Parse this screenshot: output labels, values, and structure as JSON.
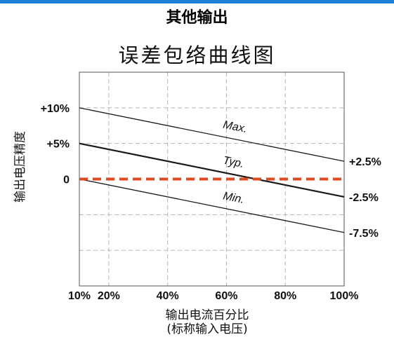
{
  "header": {
    "section_title": "其他输出",
    "accent_color": "#1e7fd6"
  },
  "chart_data": {
    "type": "line",
    "title": "误差包络曲线图",
    "xlabel": "输出电流百分比",
    "xlabel_sub": "(标称输入电压)",
    "ylabel": "输出电压精度",
    "x_ticks": [
      "10%",
      "20%",
      "40%",
      "60%",
      "80%",
      "100%"
    ],
    "y_ticks": [
      "+10%",
      "+5%",
      "0"
    ],
    "xlim": [
      10,
      100
    ],
    "ylim": [
      -15,
      15
    ],
    "grid": true,
    "series": [
      {
        "name": "Max.",
        "x": [
          10,
          100
        ],
        "y": [
          10,
          2.5
        ],
        "color": "#1a1a1a",
        "end_label": "+2.5%"
      },
      {
        "name": "Typ.",
        "x": [
          10,
          100
        ],
        "y": [
          5,
          -2.5
        ],
        "color": "#1a1a1a",
        "end_label": "-2.5%"
      },
      {
        "name": "Min.",
        "x": [
          10,
          100
        ],
        "y": [
          0,
          -7.5
        ],
        "color": "#1a1a1a",
        "end_label": "-7.5%"
      }
    ],
    "reference_line": {
      "y": 0,
      "color": "#e04a1f",
      "style": "dashed"
    }
  }
}
